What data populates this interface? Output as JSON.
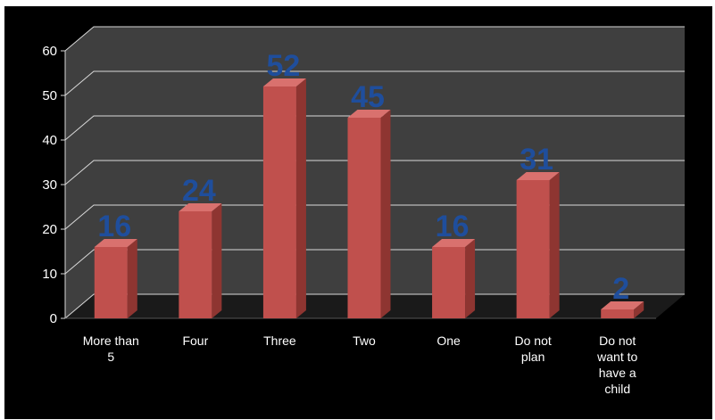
{
  "chart_data": {
    "type": "bar",
    "style": "3d-clustered-column",
    "categories": [
      [
        "More than",
        "5"
      ],
      [
        "Four"
      ],
      [
        "Three"
      ],
      [
        "Two"
      ],
      [
        "One"
      ],
      [
        "Do not",
        "plan"
      ],
      [
        "Do not",
        "want to",
        "have a",
        "child"
      ]
    ],
    "values": [
      16,
      24,
      52,
      45,
      16,
      31,
      2
    ],
    "data_labels": [
      "16",
      "24",
      "52",
      "45",
      "16",
      "31",
      "2"
    ],
    "ylim": [
      0,
      60
    ],
    "yticks": [
      0,
      10,
      20,
      30,
      40,
      50,
      60
    ],
    "ytick_labels": [
      "0",
      "10",
      "20",
      "30",
      "40",
      "50",
      "60"
    ],
    "grid": true,
    "legend": "none",
    "colors": {
      "background": "#000000",
      "wall": "#3f3f3f",
      "floor": "#1a1a1a",
      "gridline": "#d9d9d9",
      "bar_front": "#c0504d",
      "bar_side": "#8e3531",
      "bar_top": "#d9716e",
      "data_label": "#1f4e9c",
      "axis_text": "#ffffff"
    }
  }
}
